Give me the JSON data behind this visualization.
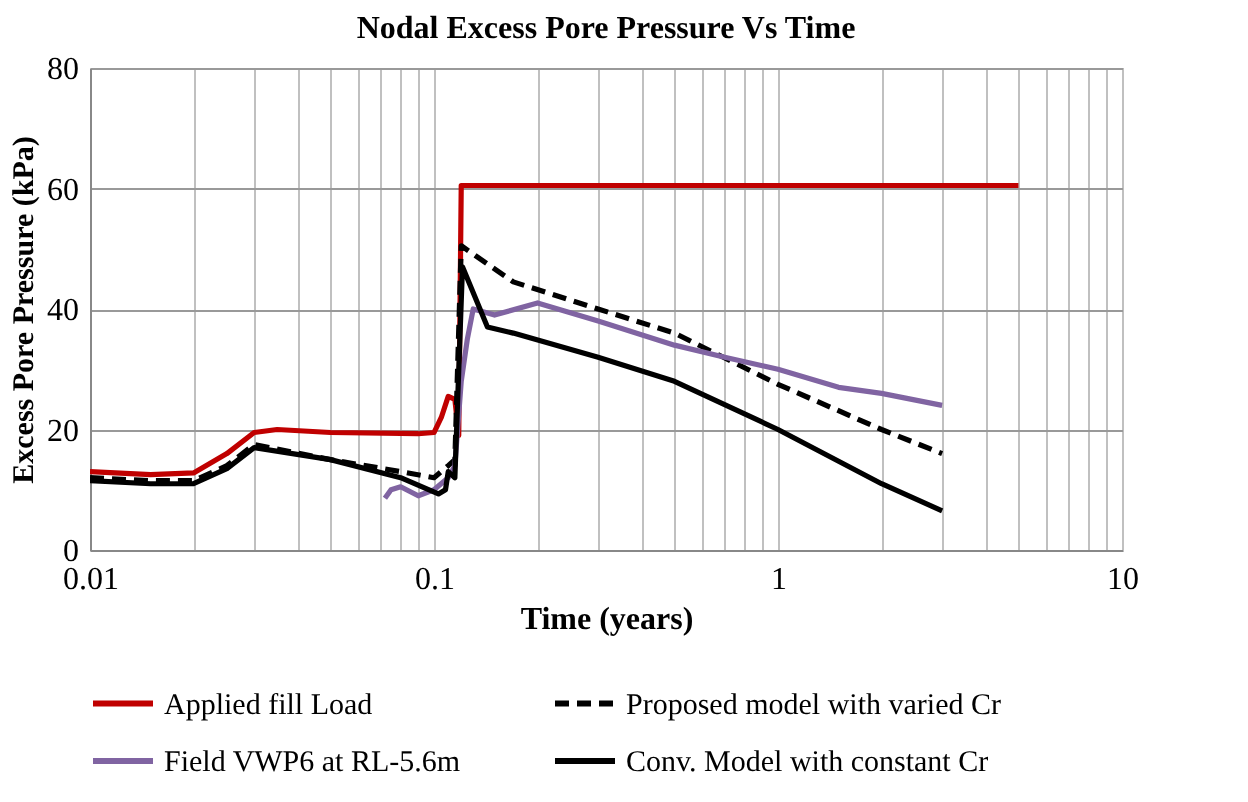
{
  "chart_data": {
    "type": "line",
    "title": "Nodal Excess  Pore Pressure  Vs Time",
    "xlabel": "Time  (years)",
    "ylabel": "Excess Pore Pressure (kPa)",
    "log": "x",
    "grid": true,
    "legend": "bottom",
    "xlim": [
      0.01,
      10
    ],
    "xticks": [
      0.01,
      0.1,
      1,
      10
    ],
    "ylim": [
      0,
      80
    ],
    "yticks": [
      0,
      20,
      40,
      60,
      80
    ],
    "series": [
      {
        "name": "Applied fill Load",
        "color": "#c00000",
        "line_style": "solid",
        "x": [
          0.01,
          0.015,
          0.02,
          0.025,
          0.03,
          0.035,
          0.05,
          0.09,
          0.1,
          0.105,
          0.11,
          0.115,
          0.118,
          0.12,
          1,
          5
        ],
        "values": [
          13,
          12.5,
          12.8,
          16,
          19.5,
          20,
          19.5,
          19.3,
          19.5,
          22,
          25.5,
          25,
          19,
          60.5,
          60.5,
          60.5
        ]
      },
      {
        "name": "Proposed model with varied Cr",
        "color": "#000000",
        "line_style": "dashed",
        "x": [
          0.01,
          0.015,
          0.02,
          0.025,
          0.03,
          0.05,
          0.08,
          0.1,
          0.11,
          0.115,
          0.12,
          0.17,
          0.3,
          0.5,
          1,
          2,
          3
        ],
        "values": [
          12,
          11.5,
          11.5,
          14,
          17.5,
          15,
          13,
          12,
          14,
          15,
          50.5,
          44.5,
          40,
          36,
          27.5,
          20,
          16
        ]
      },
      {
        "name": "Field VWP6 at RL-5.6m",
        "color": "#8064a2",
        "line_style": "solid",
        "x": [
          0.072,
          0.075,
          0.08,
          0.09,
          0.1,
          0.11,
          0.115,
          0.12,
          0.125,
          0.13,
          0.15,
          0.2,
          0.3,
          0.5,
          0.7,
          1,
          1.5,
          2,
          3
        ],
        "values": [
          8.6,
          10,
          10.5,
          9,
          10,
          12,
          14,
          28,
          35,
          40,
          39,
          41,
          38,
          34,
          32,
          30,
          27,
          26,
          24
        ]
      },
      {
        "name": "Conv. Model with constant Cr",
        "color": "#000000",
        "line_style": "solid",
        "x": [
          0.01,
          0.015,
          0.02,
          0.025,
          0.03,
          0.05,
          0.08,
          0.103,
          0.108,
          0.11,
          0.115,
          0.121,
          0.143,
          0.17,
          0.3,
          0.5,
          1,
          2,
          3
        ],
        "values": [
          11.5,
          11,
          11,
          13.5,
          17,
          15,
          12,
          9.3,
          10,
          13,
          12,
          47,
          37,
          36,
          32,
          28,
          20,
          11,
          6.5
        ]
      }
    ]
  }
}
